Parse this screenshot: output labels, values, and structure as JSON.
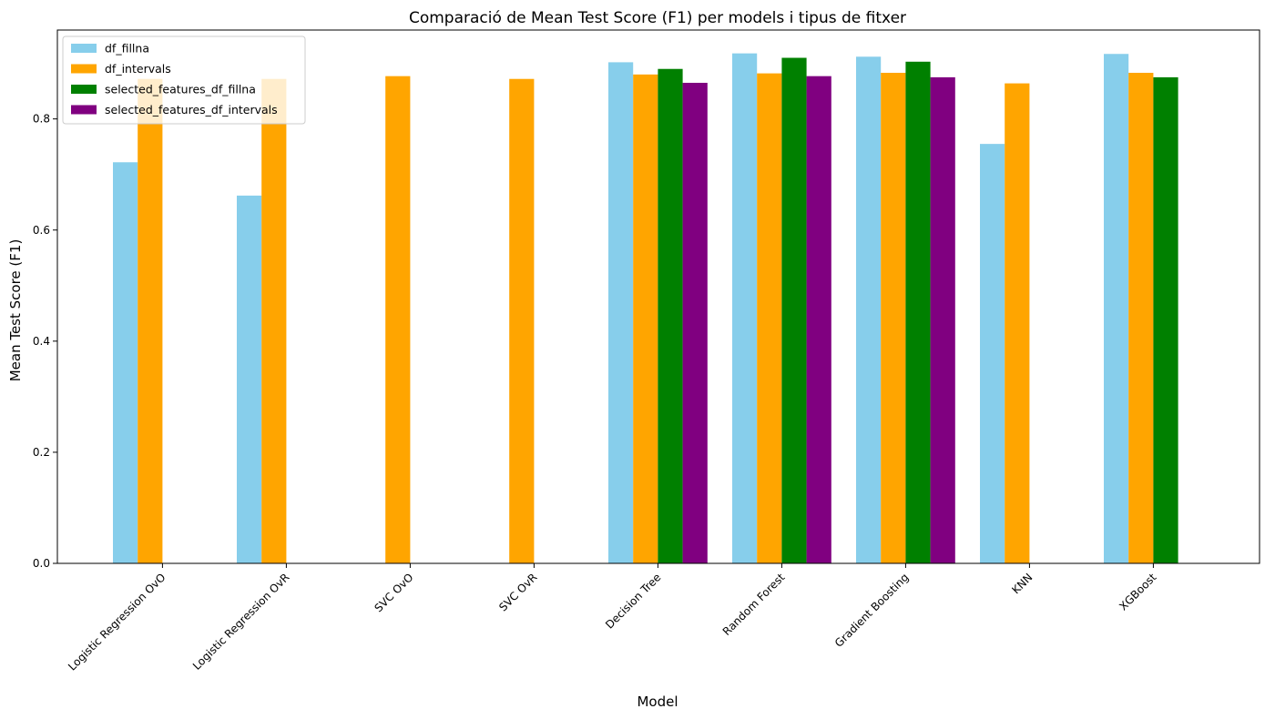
{
  "chart_data": {
    "type": "bar",
    "title": "Comparació de Mean Test Score (F1) per models i tipus de fitxer",
    "xlabel": "Model",
    "ylabel": "Mean Test Score (F1)",
    "ylim": [
      0,
      0.96
    ],
    "yticks": [
      "0.0",
      "0.2",
      "0.4",
      "0.6",
      "0.8"
    ],
    "grid": false,
    "legend_position": "top-left",
    "categories": [
      "Logistic Regression OvO",
      "Logistic Regression OvR",
      "SVC OvO",
      "SVC OvR",
      "Decision Tree",
      "Random Forest",
      "Gradient Boosting",
      "KNN",
      "XGBoost"
    ],
    "series": [
      {
        "name": "df_fillna",
        "color": "#87ceeb",
        "values": [
          0.722,
          0.662,
          null,
          null,
          0.902,
          0.918,
          0.912,
          0.755,
          0.917
        ]
      },
      {
        "name": "df_intervals",
        "color": "#ffa500",
        "values": [
          0.872,
          0.872,
          0.877,
          0.872,
          0.88,
          0.882,
          0.883,
          0.864,
          0.883
        ]
      },
      {
        "name": "selected_features_df_fillna",
        "color": "#008000",
        "values": [
          null,
          null,
          null,
          null,
          0.89,
          0.91,
          0.903,
          null,
          0.875
        ]
      },
      {
        "name": "selected_features_df_intervals",
        "color": "#800080",
        "values": [
          null,
          null,
          null,
          null,
          0.865,
          0.877,
          0.875,
          null,
          null
        ]
      }
    ]
  }
}
